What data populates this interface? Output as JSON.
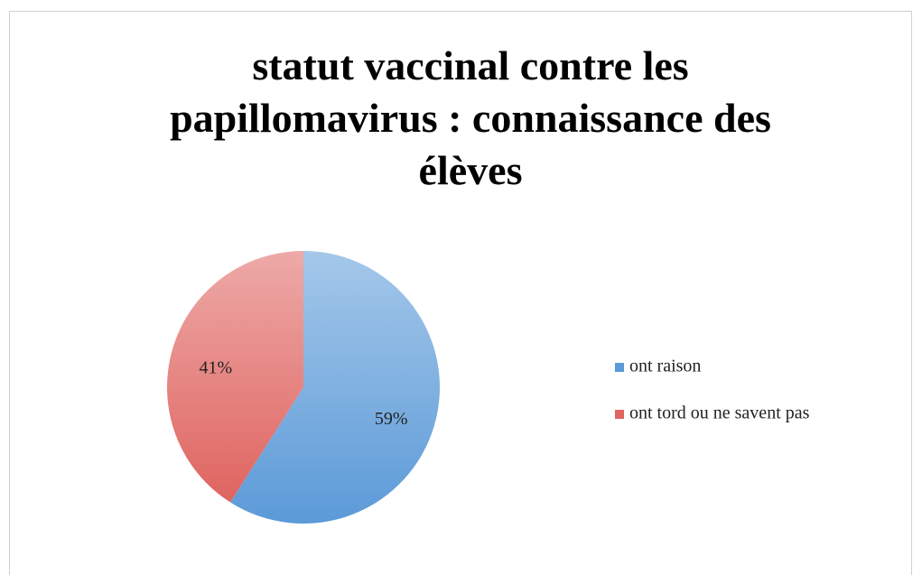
{
  "chart_data": {
    "type": "pie",
    "title": "statut vaccinal contre les papillomavirus : connaissance des élèves",
    "categories": [
      "ont raison",
      "ont tord ou ne savent pas"
    ],
    "values": [
      59,
      41
    ],
    "value_labels": [
      "59%",
      "41%"
    ],
    "colors": [
      "#5b9ad8",
      "#df6460"
    ],
    "legend": "right"
  }
}
